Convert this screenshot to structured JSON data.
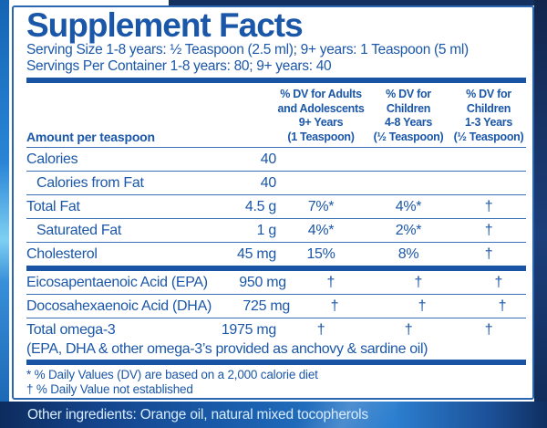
{
  "panel": {
    "title": "Supplement Facts",
    "serving_size": "Serving Size 1-8 years: ½ Teaspoon (2.5 ml); 9+ years: 1 Teaspoon (5 ml)",
    "servings_per_container": "Servings Per Container 1-8 years: 80; 9+ years: 40",
    "amount_header": "Amount per teaspoon",
    "columns": [
      {
        "lines": [
          "% DV for Adults",
          "and Adolescents",
          "9+ Years",
          "(1 Teaspoon)"
        ]
      },
      {
        "lines": [
          "% DV for",
          "Children",
          "4-8 Years",
          "(½ Teaspoon)"
        ]
      },
      {
        "lines": [
          "% DV for",
          "Children",
          "1-3 Years",
          "(½ Teaspoon)"
        ]
      }
    ],
    "rows": [
      {
        "name": "Calories",
        "amount": "40",
        "dv_9plus": "",
        "dv_4_8": "",
        "dv_1_3": ""
      },
      {
        "name": "Calories from Fat",
        "amount": "40",
        "dv_9plus": "",
        "dv_4_8": "",
        "dv_1_3": ""
      },
      {
        "name": "Total Fat",
        "amount": "4.5 g",
        "dv_9plus": "7%*",
        "dv_4_8": "4%*",
        "dv_1_3": "†"
      },
      {
        "name": "Saturated Fat",
        "amount": "1 g",
        "dv_9plus": "4%*",
        "dv_4_8": "2%*",
        "dv_1_3": "†"
      },
      {
        "name": "Cholesterol",
        "amount": "45 mg",
        "dv_9plus": "15%",
        "dv_4_8": "8%",
        "dv_1_3": "†"
      }
    ],
    "omega_rows": [
      {
        "name": "Eicosapentaenoic Acid (EPA)",
        "amount": "950 mg",
        "dv_9plus": "†",
        "dv_4_8": "†",
        "dv_1_3": "†"
      },
      {
        "name": "Docosahexaenoic Acid (DHA)",
        "amount": "725 mg",
        "dv_9plus": "†",
        "dv_4_8": "†",
        "dv_1_3": "†"
      },
      {
        "name": "Total omega-3",
        "amount": "1975 mg",
        "dv_9plus": "†",
        "dv_4_8": "†",
        "dv_1_3": "†"
      }
    ],
    "omega_note": "(EPA, DHA & other omega-3’s provided as anchovy & sardine oil)",
    "footnotes": [
      "* % Daily Values (DV) are based on a 2,000 calorie diet",
      "† % Daily Value not established"
    ]
  },
  "other_ingredients": "Other ingredients: Orange oil, natural mixed tocopherols",
  "colors": {
    "text_blue": "#1b57a8",
    "rule_blue": "#3a70b6",
    "bar_blue": "#1a55a5",
    "panel_border": "#2b66b0",
    "band_navy": "#0d2c5e",
    "band_blue": "#2c7fd0",
    "band_text": "#d8ecfc",
    "left_strip_blue": "#2a85d6"
  }
}
